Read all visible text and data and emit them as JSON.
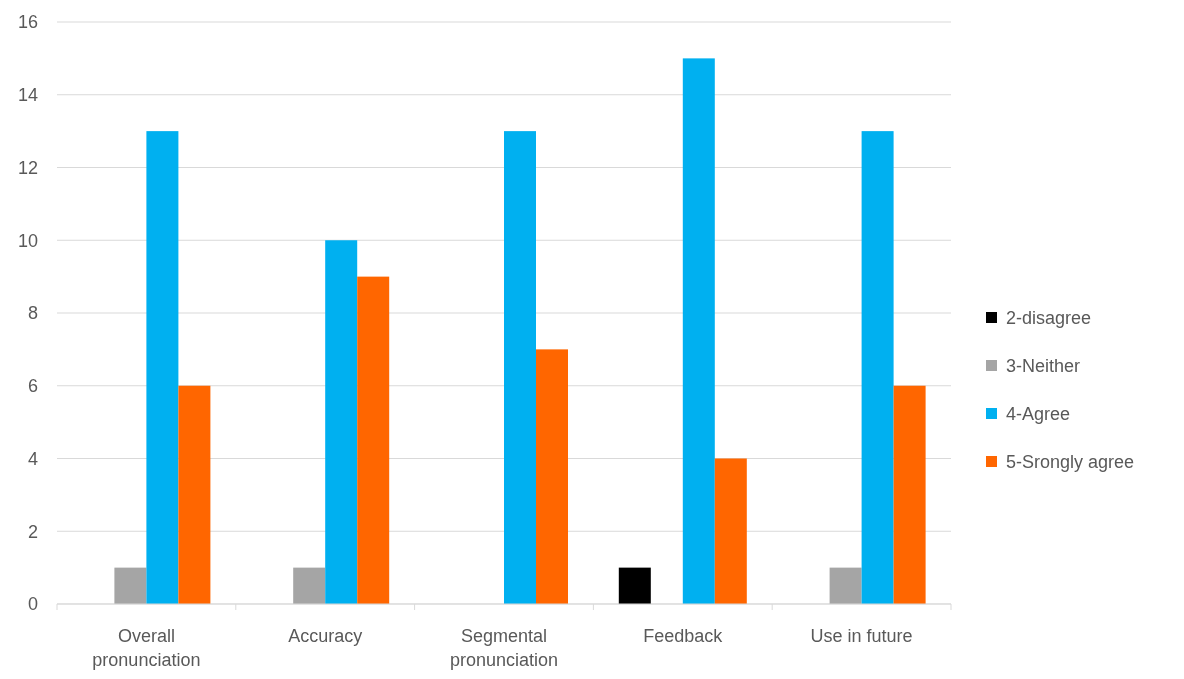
{
  "chart_data": {
    "type": "bar",
    "categories": [
      "Overall pronunciation",
      "Accuracy",
      "Segmental pronunciation",
      "Feedback",
      "Use in future"
    ],
    "series": [
      {
        "name": "2-disagree",
        "color": "#000000",
        "values": [
          0,
          0,
          0,
          1,
          0
        ]
      },
      {
        "name": "3-Neither",
        "color": "#a5a5a5",
        "values": [
          1,
          1,
          0,
          0,
          1
        ]
      },
      {
        "name": "4-Agree",
        "color": "#00b0f0",
        "values": [
          13,
          10,
          13,
          15,
          13
        ]
      },
      {
        "name": "5-Srongly agree",
        "color": "#ff6600",
        "values": [
          6,
          9,
          7,
          4,
          6
        ]
      }
    ],
    "ylim": [
      0,
      16
    ],
    "yticks": [
      0,
      2,
      4,
      6,
      8,
      10,
      12,
      14,
      16
    ],
    "grid": "y",
    "legend": "right"
  }
}
